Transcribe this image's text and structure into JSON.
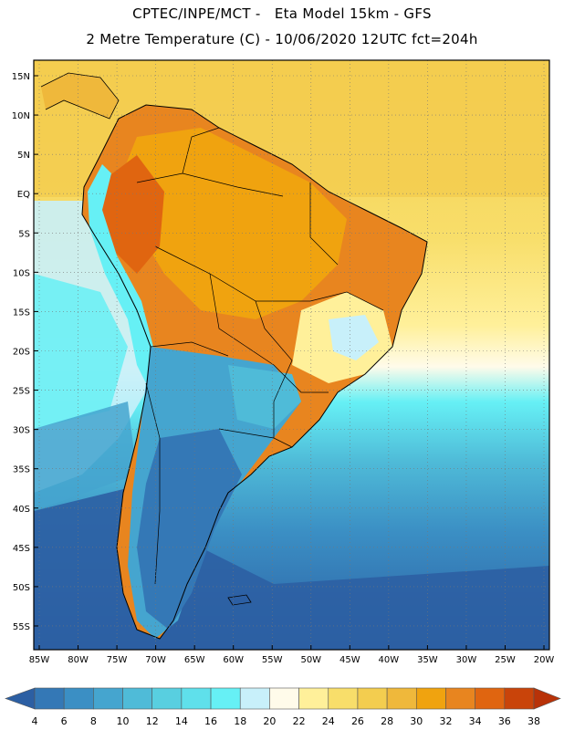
{
  "header": {
    "line1": "CPTEC/INPE/MCT -   Eta Model 15km - GFS",
    "line2": "2 Metre Temperature (C) - 10/06/2020 12UTC fct=204h"
  },
  "map": {
    "lat_ticks": [
      "15N",
      "10N",
      "5N",
      "EQ",
      "5S",
      "10S",
      "15S",
      "20S",
      "25S",
      "30S",
      "35S",
      "40S",
      "45S",
      "50S",
      "55S"
    ],
    "lon_ticks": [
      "85W",
      "80W",
      "75W",
      "70W",
      "65W",
      "60W",
      "55W",
      "50W",
      "45W",
      "40W",
      "35W",
      "30W",
      "25W",
      "20W"
    ],
    "gridlines": true
  },
  "colorbar": {
    "labels": [
      "4",
      "6",
      "8",
      "10",
      "12",
      "14",
      "16",
      "18",
      "20",
      "22",
      "24",
      "26",
      "28",
      "30",
      "32",
      "34",
      "36",
      "38"
    ],
    "colors": [
      "#2C5FA3",
      "#3478B6",
      "#3B8FC4",
      "#45A5CF",
      "#4FBBD8",
      "#58CFE0",
      "#5FE0EB",
      "#66F0F5",
      "#C8F0FA",
      "#FFFBEA",
      "#FFF09A",
      "#F8DE6A",
      "#F3CD4F",
      "#EFB83B",
      "#F0A30F",
      "#E8851F",
      "#E06510",
      "#C9440A",
      "#B83208"
    ],
    "left_arrow_color": "#2C5FA3",
    "right_arrow_color": "#B83208"
  }
}
